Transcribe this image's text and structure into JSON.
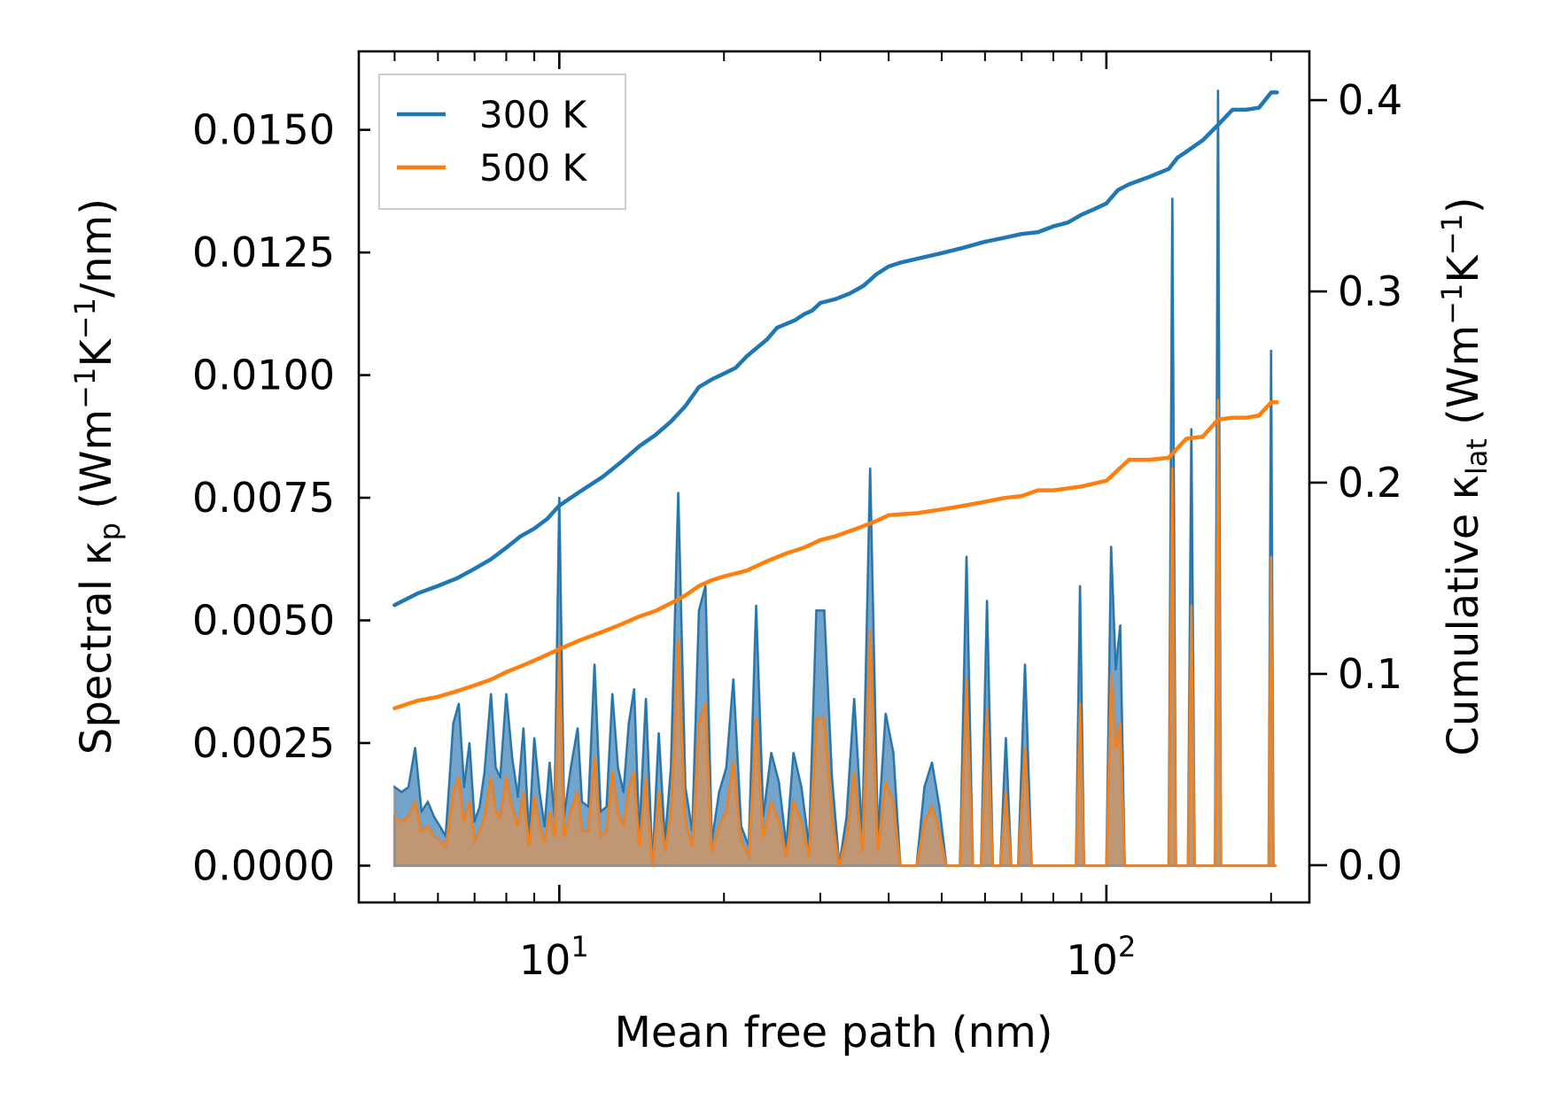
{
  "chart_data": {
    "type": "line",
    "xscale": "log",
    "xlabel": "Mean free path (nm)",
    "xlim": [
      4.3,
      235
    ],
    "x_ticks": [
      {
        "value": 10,
        "base": "10",
        "exp": "1"
      },
      {
        "value": 100,
        "base": "10",
        "exp": "2"
      }
    ],
    "left_axis": {
      "label_parts": [
        "Spectral κ",
        "p",
        " (Wm",
        "−1",
        "K",
        "−1",
        "/nm)"
      ],
      "ylim": [
        -0.00075,
        0.0166
      ],
      "ticks": [
        0.0,
        0.0025,
        0.005,
        0.0075,
        0.01,
        0.0125,
        0.015
      ],
      "tick_labels": [
        "0.0000",
        "0.0025",
        "0.0050",
        "0.0075",
        "0.0100",
        "0.0125",
        "0.0150"
      ]
    },
    "right_axis": {
      "label_parts": [
        "Cumulative κ",
        "lat",
        " (Wm",
        "−1",
        "K",
        "−1",
        ")"
      ],
      "ylim": [
        -0.0195,
        0.4255
      ],
      "ticks": [
        0.0,
        0.1,
        0.2,
        0.3,
        0.4
      ],
      "tick_labels": [
        "0.0",
        "0.1",
        "0.2",
        "0.3",
        "0.4"
      ]
    },
    "legend": {
      "placement": "top-left",
      "entries": [
        {
          "label": "300 K",
          "color": "#1f77b4"
        },
        {
          "label": "500 K",
          "color": "#ff7f0e"
        }
      ]
    },
    "spectral_series": [
      {
        "name": "300 K",
        "color": "#1f77b4",
        "axis": "left",
        "x": [
          5.0,
          5.15,
          5.3,
          5.45,
          5.6,
          5.75,
          5.9,
          6.05,
          6.2,
          6.4,
          6.55,
          6.7,
          6.85,
          7.0,
          7.15,
          7.3,
          7.5,
          7.65,
          7.8,
          8.0,
          8.2,
          8.4,
          8.6,
          8.8,
          9.0,
          9.2,
          9.4,
          9.6,
          9.8,
          10.0,
          10.2,
          10.5,
          10.8,
          11.0,
          11.3,
          11.6,
          11.9,
          12.2,
          12.5,
          12.8,
          13.1,
          13.4,
          13.7,
          14.0,
          14.4,
          14.8,
          15.2,
          15.6,
          16.0,
          16.5,
          17.0,
          17.5,
          18.0,
          18.5,
          19.0,
          19.6,
          20.2,
          20.8,
          21.5,
          22.2,
          22.9,
          23.6,
          24.4,
          25.2,
          26.0,
          26.8,
          27.7,
          28.6,
          29.5,
          30.5,
          31.5,
          32.5,
          33.5,
          34.6,
          35.8,
          37.0,
          38.2,
          39.5,
          40.8,
          42.0,
          45.0,
          46.5,
          48.0,
          49.5,
          51.0,
          52.5,
          54.0,
          55.5,
          57.0,
          59.0,
          60.5,
          62.0,
          64.0,
          65.5,
          67.0,
          69.0,
          71.0,
          73.0,
          75.0,
          88.0,
          89.5,
          91.0,
          92.5,
          100.0,
          102.0,
          104.0,
          106.0,
          108.0,
          110.0,
          112.0,
          130.0,
          132.0,
          134.0,
          136.0,
          141.0,
          143.0,
          145.0,
          158.0,
          160.0,
          162.0,
          164.0,
          198.0,
          200.0,
          202.0,
          204.0
        ],
        "values": [
          0.0016,
          0.0015,
          0.0016,
          0.0024,
          0.0011,
          0.0013,
          0.001,
          0.0008,
          0.0006,
          0.0029,
          0.0033,
          0.0016,
          0.0025,
          0.0009,
          0.0012,
          0.0019,
          0.0035,
          0.002,
          0.0018,
          0.0035,
          0.0022,
          0.0014,
          0.0028,
          0.0006,
          0.0026,
          0.0015,
          0.0008,
          0.0021,
          0.001,
          0.0075,
          0.001,
          0.002,
          0.0028,
          0.0013,
          0.0012,
          0.0041,
          0.0011,
          0.0012,
          0.0035,
          0.002,
          0.0015,
          0.0029,
          0.0036,
          0.0006,
          0.0034,
          0.0,
          0.0027,
          0.0005,
          0.002,
          0.0076,
          0.0016,
          0.0007,
          0.0052,
          0.0057,
          0.0005,
          0.0015,
          0.002,
          0.0038,
          0.0008,
          0.0004,
          0.0053,
          0.001,
          0.0023,
          0.0017,
          0.0004,
          0.0023,
          0.0016,
          0.0004,
          0.0052,
          0.0052,
          0.0018,
          0.0,
          0.001,
          0.0034,
          0.0006,
          0.0081,
          0.0006,
          0.0031,
          0.0023,
          0.0,
          0.0,
          0.0016,
          0.0021,
          0.0012,
          0.0,
          0.0,
          0.0,
          0.0063,
          0.0,
          0.0,
          0.0054,
          0.0,
          0.0,
          0.0026,
          0.0,
          0.0,
          0.0041,
          0.0,
          0.0,
          0.0,
          0.0057,
          0.0,
          0.0,
          0.0,
          0.0065,
          0.004,
          0.0049,
          0.0,
          0.0,
          0.0,
          0.0,
          0.0136,
          0.0,
          0.0,
          0.0,
          0.0089,
          0.0,
          0.0,
          0.0158,
          0.0,
          0.0,
          0.0,
          0.0105,
          0.0,
          0.0
        ]
      },
      {
        "name": "500 K",
        "color": "#ff7f0e",
        "axis": "left",
        "x": [
          5.0,
          5.15,
          5.3,
          5.45,
          5.6,
          5.75,
          5.9,
          6.05,
          6.2,
          6.4,
          6.55,
          6.7,
          6.85,
          7.0,
          7.15,
          7.3,
          7.5,
          7.65,
          7.8,
          8.0,
          8.2,
          8.4,
          8.6,
          8.8,
          9.0,
          9.2,
          9.4,
          9.6,
          9.8,
          10.0,
          10.2,
          10.5,
          10.8,
          11.0,
          11.3,
          11.6,
          11.9,
          12.2,
          12.5,
          12.8,
          13.1,
          13.4,
          13.7,
          14.0,
          14.4,
          14.8,
          15.2,
          15.6,
          16.0,
          16.5,
          17.0,
          17.5,
          18.0,
          18.5,
          19.0,
          19.6,
          20.2,
          20.8,
          21.5,
          22.2,
          22.9,
          23.6,
          24.4,
          25.2,
          26.0,
          26.8,
          27.7,
          28.6,
          29.5,
          30.5,
          31.5,
          32.5,
          33.5,
          34.6,
          35.8,
          37.0,
          38.2,
          39.5,
          40.8,
          42.0,
          45.0,
          46.5,
          48.0,
          49.5,
          51.0,
          52.5,
          54.0,
          55.5,
          57.0,
          59.0,
          60.5,
          62.0,
          64.0,
          65.5,
          67.0,
          69.0,
          71.0,
          73.0,
          75.0,
          88.0,
          89.5,
          91.0,
          92.5,
          100.0,
          102.0,
          104.0,
          106.0,
          108.0,
          110.0,
          112.0,
          130.0,
          132.0,
          134.0,
          136.0,
          141.0,
          143.0,
          145.0,
          158.0,
          160.0,
          162.0,
          164.0,
          198.0,
          200.0,
          202.0,
          204.0
        ],
        "values": [
          0.001,
          0.0009,
          0.001,
          0.0013,
          0.0007,
          0.0008,
          0.0006,
          0.0005,
          0.0004,
          0.0015,
          0.0018,
          0.0009,
          0.0013,
          0.0005,
          0.0007,
          0.001,
          0.0018,
          0.0011,
          0.001,
          0.0018,
          0.0012,
          0.0008,
          0.0015,
          0.0004,
          0.0014,
          0.0008,
          0.0005,
          0.0011,
          0.0006,
          0.0045,
          0.0006,
          0.0011,
          0.0015,
          0.0007,
          0.0007,
          0.0022,
          0.0006,
          0.0007,
          0.0019,
          0.0011,
          0.0008,
          0.0016,
          0.0019,
          0.0004,
          0.0018,
          0.0,
          0.0015,
          0.0003,
          0.0011,
          0.0046,
          0.0009,
          0.0004,
          0.0029,
          0.0033,
          0.0003,
          0.0008,
          0.0011,
          0.0021,
          0.0005,
          0.0002,
          0.003,
          0.0006,
          0.0013,
          0.0009,
          0.0002,
          0.0013,
          0.0009,
          0.0002,
          0.003,
          0.003,
          0.001,
          0.0,
          0.0006,
          0.0019,
          0.0003,
          0.0048,
          0.0003,
          0.0017,
          0.0013,
          0.0,
          0.0,
          0.0009,
          0.0012,
          0.0007,
          0.0,
          0.0,
          0.0,
          0.0038,
          0.0,
          0.0,
          0.0032,
          0.0,
          0.0,
          0.0015,
          0.0,
          0.0,
          0.0024,
          0.0,
          0.0,
          0.0,
          0.0033,
          0.0,
          0.0,
          0.0,
          0.0039,
          0.0024,
          0.0029,
          0.0,
          0.0,
          0.0,
          0.0,
          0.0081,
          0.0,
          0.0,
          0.0,
          0.0053,
          0.0,
          0.0,
          0.0095,
          0.0,
          0.0,
          0.0,
          0.0063,
          0.0,
          0.0
        ]
      }
    ],
    "cumulative_series": [
      {
        "name": "300 K",
        "color": "#1f77b4",
        "axis": "right",
        "x": [
          5.0,
          5.5,
          6.0,
          6.5,
          7.0,
          7.5,
          8.0,
          8.5,
          9.0,
          9.5,
          10.0,
          11.0,
          12.0,
          13.0,
          14.0,
          15.0,
          16.0,
          17.0,
          18.0,
          19.0,
          20.0,
          21.0,
          22.0,
          24.0,
          25.0,
          27.0,
          28.0,
          29.0,
          30.0,
          32.0,
          34.0,
          35.0,
          36.0,
          37.0,
          38.0,
          40.0,
          42.0,
          45.0,
          50.0,
          55.0,
          60.0,
          65.0,
          70.0,
          75.0,
          80.0,
          85.0,
          90.0,
          95.0,
          100.0,
          105.0,
          110.0,
          120.0,
          130.0,
          135.0,
          140.0,
          150.0,
          160.0,
          170.0,
          180.0,
          190.0,
          195.0,
          200.0,
          205.0
        ],
        "values": [
          0.136,
          0.142,
          0.146,
          0.15,
          0.155,
          0.16,
          0.166,
          0.172,
          0.176,
          0.181,
          0.188,
          0.196,
          0.203,
          0.211,
          0.219,
          0.225,
          0.232,
          0.24,
          0.25,
          0.254,
          0.257,
          0.26,
          0.266,
          0.275,
          0.281,
          0.285,
          0.288,
          0.29,
          0.294,
          0.296,
          0.299,
          0.301,
          0.303,
          0.306,
          0.309,
          0.313,
          0.315,
          0.317,
          0.32,
          0.323,
          0.326,
          0.328,
          0.33,
          0.331,
          0.334,
          0.336,
          0.34,
          0.343,
          0.346,
          0.353,
          0.356,
          0.36,
          0.364,
          0.37,
          0.373,
          0.379,
          0.387,
          0.395,
          0.395,
          0.396,
          0.4,
          0.404,
          0.404
        ]
      },
      {
        "name": "500 K",
        "color": "#ff7f0e",
        "axis": "right",
        "x": [
          5.0,
          5.5,
          6.0,
          6.5,
          7.0,
          7.5,
          8.0,
          8.5,
          9.0,
          9.5,
          10.0,
          11.0,
          12.0,
          13.0,
          14.0,
          15.0,
          16.0,
          17.0,
          18.0,
          19.0,
          20.0,
          22.0,
          24.0,
          26.0,
          28.0,
          30.0,
          32.0,
          35.0,
          38.0,
          40.0,
          45.0,
          50.0,
          55.0,
          60.0,
          65.0,
          70.0,
          75.0,
          80.0,
          90.0,
          100.0,
          110.0,
          120.0,
          130.0,
          140.0,
          150.0,
          160.0,
          170.0,
          180.0,
          190.0,
          200.0,
          205.0
        ],
        "values": [
          0.082,
          0.086,
          0.088,
          0.091,
          0.094,
          0.097,
          0.101,
          0.104,
          0.107,
          0.11,
          0.113,
          0.118,
          0.122,
          0.126,
          0.13,
          0.133,
          0.137,
          0.141,
          0.146,
          0.149,
          0.151,
          0.154,
          0.159,
          0.163,
          0.166,
          0.17,
          0.172,
          0.176,
          0.18,
          0.183,
          0.184,
          0.186,
          0.188,
          0.19,
          0.192,
          0.193,
          0.196,
          0.196,
          0.198,
          0.201,
          0.212,
          0.212,
          0.213,
          0.223,
          0.224,
          0.233,
          0.234,
          0.234,
          0.235,
          0.242,
          0.242
        ]
      }
    ]
  }
}
